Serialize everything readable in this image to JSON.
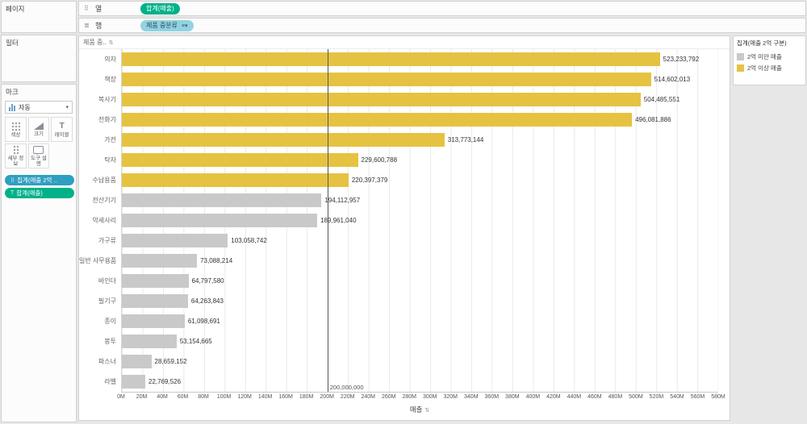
{
  "shelves": {
    "columns": {
      "label": "열",
      "pill": "합계(매출)",
      "pill_color": "#00b18a"
    },
    "rows": {
      "label": "행",
      "pill": "제품 중분류",
      "pill_color": "#93d2e2"
    }
  },
  "panels": {
    "pages": {
      "title": "페이지"
    },
    "filters": {
      "title": "필터"
    },
    "marks": {
      "title": "마크",
      "mark_type_label": "자동",
      "buttons": [
        {
          "label": "색상"
        },
        {
          "label": "크기"
        },
        {
          "label": "레이블"
        },
        {
          "label": "세부 정보"
        },
        {
          "label": "도구 설명"
        }
      ],
      "pills": [
        {
          "label": "집계(매출 2억 ..",
          "color": "#2f9fc0"
        },
        {
          "label": "합계(매출)",
          "color": "#00b18a"
        }
      ]
    }
  },
  "legend": {
    "title": "집계(매출 2억 구분)",
    "items": [
      {
        "label": "2억 미만 매출",
        "color": "#c9c9c9"
      },
      {
        "label": "2억 이상 매출",
        "color": "#e6c242"
      }
    ]
  },
  "chart_data": {
    "type": "bar",
    "orientation": "horizontal",
    "title": "",
    "row_field_header": "제품 중..",
    "categories": [
      "의자",
      "책장",
      "복사기",
      "전화기",
      "가전",
      "탁자",
      "수납용품",
      "전산기기",
      "악세사리",
      "가구류",
      "일반 사무용품",
      "바인더",
      "필기구",
      "종이",
      "봉투",
      "파스너",
      "라벨"
    ],
    "values": [
      523233792,
      514602013,
      504485551,
      496081886,
      313773144,
      229600788,
      220397379,
      194112957,
      189961040,
      103058742,
      73088214,
      64797580,
      64263843,
      61098691,
      53154665,
      28659152,
      22769526
    ],
    "value_labels": [
      "523,233,792",
      "514,602,013",
      "504,485,551",
      "496,081,886",
      "313,773,144",
      "229,600,788",
      "220,397,379",
      "194,112,957",
      "189,961,040",
      "103,058,742",
      "73,088,214",
      "64,797,580",
      "64,263,843",
      "61,098,691",
      "53,154,665",
      "28,659,152",
      "22,769,526"
    ],
    "series_class": [
      "above",
      "above",
      "above",
      "above",
      "above",
      "above",
      "above",
      "below",
      "below",
      "below",
      "below",
      "below",
      "below",
      "below",
      "below",
      "below",
      "below"
    ],
    "color_map": {
      "above": "#e6c242",
      "below": "#c9c9c9"
    },
    "reference_line": {
      "value": 200000000,
      "label": "200,000,000"
    },
    "xlabel": "매출",
    "ylabel": "제품 중분류",
    "xlim": [
      0,
      580000000
    ],
    "x_ticks": [
      "0M",
      "20M",
      "40M",
      "60M",
      "80M",
      "100M",
      "120M",
      "140M",
      "160M",
      "180M",
      "200M",
      "220M",
      "240M",
      "260M",
      "280M",
      "300M",
      "320M",
      "340M",
      "360M",
      "380M",
      "400M",
      "420M",
      "440M",
      "460M",
      "480M",
      "500M",
      "520M",
      "540M",
      "560M",
      "580M"
    ],
    "grid": true,
    "legend_position": "right"
  }
}
